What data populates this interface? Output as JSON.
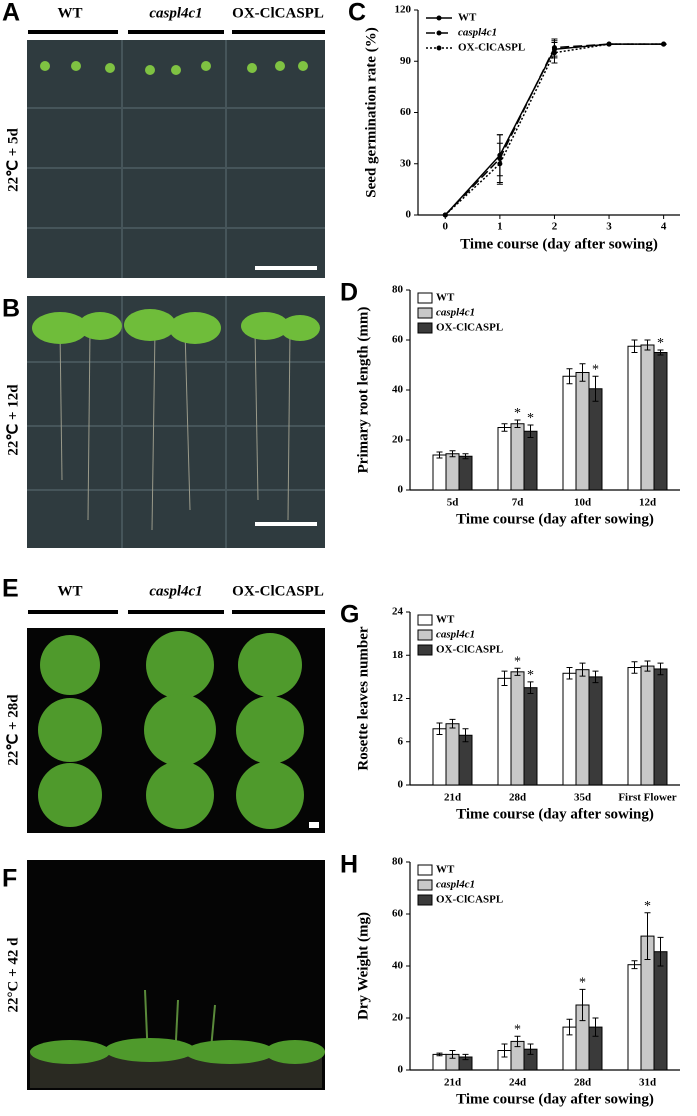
{
  "photos": [
    {
      "panel": "A",
      "columns": [
        "WT",
        "caspl4c1",
        "OX-ClCASPL"
      ],
      "condition": "22℃ + 5d"
    },
    {
      "panel": "B",
      "condition": "22℃ + 12d"
    },
    {
      "panel": "E",
      "columns": [
        "WT",
        "caspl4c1",
        "OX-ClCASPL"
      ],
      "condition": "22℃ + 28d"
    },
    {
      "panel": "F",
      "condition": "22°C + 42 d"
    }
  ],
  "chart_data": [
    {
      "type": "line",
      "panel": "C",
      "x_label": "Time course (day after sowing)",
      "y_label": "Seed germination rate (%)",
      "x": [
        0,
        1,
        2,
        3,
        4
      ],
      "xlim": [
        -0.5,
        4.3
      ],
      "xticks": [
        0,
        1,
        2,
        3,
        4
      ],
      "ylim": [
        0,
        120
      ],
      "yticks": [
        0,
        30,
        60,
        90,
        120
      ],
      "legend": "upper left",
      "series": [
        {
          "name": "WT",
          "color": "#000000",
          "style": "solid",
          "values": [
            0,
            35,
            97,
            100,
            100
          ],
          "errors": [
            0,
            12,
            5,
            0,
            0
          ]
        },
        {
          "name": "caspl4c1",
          "color": "#000000",
          "style": "dashed",
          "values": [
            0,
            33,
            98,
            100,
            100
          ],
          "errors": [
            0,
            14,
            5,
            0,
            0
          ]
        },
        {
          "name": "OX-ClCASPL",
          "color": "#000000",
          "style": "dotted",
          "values": [
            0,
            30,
            95,
            100,
            100
          ],
          "errors": [
            0,
            12,
            6,
            0,
            0
          ]
        }
      ]
    },
    {
      "type": "bar",
      "panel": "D",
      "x_label": "Time course (day after sowing)",
      "y_label": "Primary root length (mm)",
      "categories": [
        "5d",
        "7d",
        "10d",
        "12d"
      ],
      "ylim": [
        0,
        80
      ],
      "yticks": [
        0,
        20,
        40,
        60,
        80
      ],
      "legend": "upper left",
      "series": [
        {
          "name": "WT",
          "color": "#ffffff",
          "values": [
            14,
            25,
            45.5,
            57.5
          ],
          "errors": [
            1.2,
            1.5,
            3,
            2.5
          ],
          "significance": [
            null,
            null,
            null,
            null
          ]
        },
        {
          "name": "caspl4c1",
          "color": "#c8c8c8",
          "values": [
            14.5,
            26.5,
            47,
            58
          ],
          "errors": [
            1.2,
            1.5,
            3.5,
            2
          ],
          "significance": [
            null,
            "*",
            null,
            null
          ]
        },
        {
          "name": "OX-ClCASPL",
          "color": "#3a3a3a",
          "values": [
            13.5,
            23.5,
            40.5,
            55
          ],
          "errors": [
            1,
            2.5,
            5,
            1
          ],
          "significance": [
            null,
            "*",
            "*",
            "*"
          ]
        }
      ]
    },
    {
      "type": "bar",
      "panel": "G",
      "x_label": "Time course (day after sowing)",
      "y_label": "Rosette leaves number",
      "categories": [
        "21d",
        "28d",
        "35d",
        "First Flower"
      ],
      "ylim": [
        0,
        24
      ],
      "yticks": [
        0,
        6,
        12,
        18,
        24
      ],
      "legend": "upper left",
      "series": [
        {
          "name": "WT",
          "color": "#ffffff",
          "values": [
            7.8,
            14.8,
            15.5,
            16.3
          ],
          "errors": [
            0.8,
            1,
            0.8,
            0.8
          ],
          "significance": [
            null,
            null,
            null,
            null
          ]
        },
        {
          "name": "caspl4c1",
          "color": "#c8c8c8",
          "values": [
            8.5,
            15.7,
            16,
            16.5
          ],
          "errors": [
            0.6,
            0.5,
            0.9,
            0.7
          ],
          "significance": [
            null,
            "*",
            null,
            null
          ]
        },
        {
          "name": "OX-ClCASPL",
          "color": "#3a3a3a",
          "values": [
            6.9,
            13.5,
            15,
            16.1
          ],
          "errors": [
            0.9,
            0.8,
            0.8,
            0.8
          ],
          "significance": [
            null,
            "*",
            null,
            null
          ]
        }
      ]
    },
    {
      "type": "bar",
      "panel": "H",
      "x_label": "Time course (day after sowing)",
      "y_label": "Dry Weight (mg)",
      "categories": [
        "21d",
        "24d",
        "28d",
        "31d"
      ],
      "ylim": [
        0,
        80
      ],
      "yticks": [
        0,
        20,
        40,
        60,
        80
      ],
      "legend": "upper left",
      "series": [
        {
          "name": "WT",
          "color": "#ffffff",
          "values": [
            6,
            7.5,
            16.5,
            40.5
          ],
          "errors": [
            0.5,
            2.5,
            3,
            1.5
          ],
          "significance": [
            null,
            null,
            null,
            null
          ]
        },
        {
          "name": "caspl4c1",
          "color": "#c8c8c8",
          "values": [
            6,
            11,
            25,
            51.5
          ],
          "errors": [
            1.5,
            2,
            6,
            9
          ],
          "significance": [
            null,
            "*",
            "*",
            "*"
          ]
        },
        {
          "name": "OX-ClCASPL",
          "color": "#3a3a3a",
          "values": [
            5,
            8,
            16.5,
            45.5
          ],
          "errors": [
            1,
            2,
            3.5,
            5.5
          ],
          "significance": [
            null,
            null,
            null,
            null
          ]
        }
      ]
    }
  ]
}
